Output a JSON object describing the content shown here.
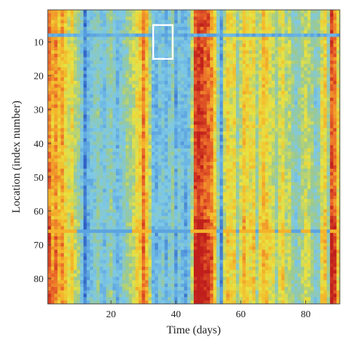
{
  "chart_data": {
    "type": "heatmap",
    "title": "",
    "xlabel": "Time (days)",
    "ylabel": "Location (index number)",
    "xlim": [
      0.5,
      90.5
    ],
    "ylim": [
      0.5,
      87.5
    ],
    "y_inverted": true,
    "x_ticks": [
      20,
      40,
      60,
      80
    ],
    "y_ticks": [
      10,
      20,
      30,
      40,
      50,
      60,
      70,
      80
    ],
    "n_time": 90,
    "n_location": 87,
    "colormap": [
      "#2f5fc4",
      "#5aa2e0",
      "#7ec9e6",
      "#9cc98f",
      "#e8e342",
      "#f4b62b",
      "#e9632a",
      "#c01f1c"
    ],
    "day_intensity_profile": [
      0.82,
      0.7,
      0.76,
      0.68,
      0.72,
      0.62,
      0.55,
      0.6,
      0.48,
      0.42,
      0.3,
      0.1,
      0.22,
      0.28,
      0.32,
      0.38,
      0.3,
      0.26,
      0.34,
      0.38,
      0.3,
      0.24,
      0.3,
      0.36,
      0.4,
      0.44,
      0.5,
      0.58,
      0.62,
      0.8,
      0.65,
      0.48,
      0.26,
      0.22,
      0.28,
      0.3,
      0.24,
      0.3,
      0.36,
      0.18,
      0.3,
      0.24,
      0.2,
      0.28,
      0.48,
      0.9,
      0.95,
      0.93,
      0.88,
      0.85,
      0.78,
      0.62,
      0.38,
      0.15,
      0.5,
      0.62,
      0.56,
      0.6,
      0.4,
      0.52,
      0.66,
      0.58,
      0.56,
      0.6,
      0.42,
      0.58,
      0.66,
      0.62,
      0.55,
      0.5,
      0.42,
      0.56,
      0.6,
      0.46,
      0.5,
      0.4,
      0.34,
      0.38,
      0.45,
      0.52,
      0.48,
      0.4,
      0.34,
      0.38,
      0.56,
      0.62,
      0.4,
      0.9,
      0.84,
      0.6
    ],
    "highlighted_region": {
      "x_range": [
        33,
        39
      ],
      "y_range": [
        5,
        15
      ],
      "color": "#ffffff"
    }
  }
}
